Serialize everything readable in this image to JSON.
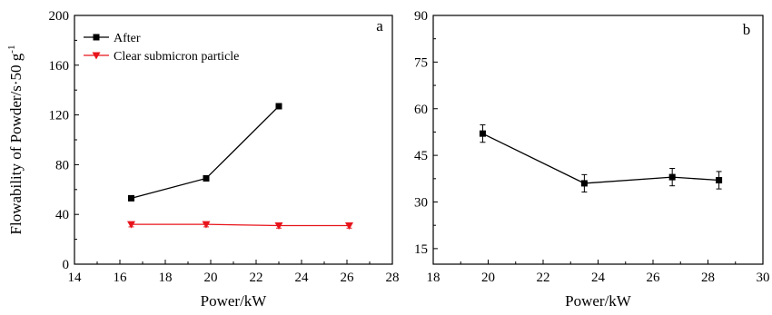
{
  "chart_data": [
    {
      "type": "line",
      "panel_label": "a",
      "xlabel": "Power/kW",
      "ylabel": "Flowability of Powder/s·50 g",
      "ylabel_superscript": "-1",
      "xlim": [
        14,
        28
      ],
      "ylim": [
        0,
        200
      ],
      "xticks": [
        "14",
        "16",
        "18",
        "20",
        "22",
        "24",
        "26",
        "28"
      ],
      "yticks": [
        "0",
        "40",
        "80",
        "120",
        "160",
        "200"
      ],
      "legend_position": "top-left",
      "series": [
        {
          "name": "After",
          "color": "#000000",
          "marker": "square",
          "x": [
            16.5,
            19.8,
            23.0
          ],
          "y": [
            53,
            69,
            127
          ],
          "err": [
            1.5,
            1.5,
            2
          ]
        },
        {
          "name": "Clear submicron particle",
          "color": "#e8141b",
          "marker": "triangle-down",
          "x": [
            16.5,
            19.8,
            23.0,
            26.1
          ],
          "y": [
            32,
            32,
            31,
            31
          ],
          "err": [
            2,
            2,
            2,
            2
          ]
        }
      ]
    },
    {
      "type": "line",
      "panel_label": "b",
      "xlabel": "Power/kW",
      "ylabel": "",
      "xlim": [
        18,
        30
      ],
      "ylim": [
        10,
        90
      ],
      "xticks": [
        "18",
        "20",
        "22",
        "24",
        "26",
        "28",
        "30"
      ],
      "yticks": [
        "15",
        "30",
        "45",
        "60",
        "75",
        "90"
      ],
      "series": [
        {
          "name": "",
          "color": "#000000",
          "marker": "square",
          "x": [
            19.8,
            23.5,
            26.7,
            28.4
          ],
          "y": [
            52,
            36,
            38,
            37
          ],
          "err": [
            2.8,
            2.8,
            2.8,
            2.8
          ]
        }
      ]
    }
  ]
}
